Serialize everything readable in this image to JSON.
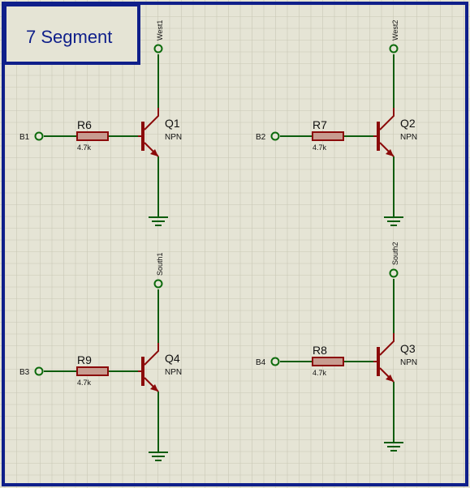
{
  "title": "7 Segment",
  "colors": {
    "background": "#e5e4d5",
    "grid": "#c9c8b6",
    "frame": "#0f1f8a",
    "wire": "#0c5c0c",
    "component": "#8b0a0a",
    "resistor_fill": "#c89c90",
    "terminal": "#0c6a0c",
    "text": "#111111",
    "title_text": "#0f1f8a"
  },
  "terminals": {
    "west1": "West1",
    "west2": "West2",
    "south1": "South1",
    "south2": "South2",
    "b1": "B1",
    "b2": "B2",
    "b3": "B3",
    "b4": "B4"
  },
  "components": {
    "r6": {
      "ref": "R6",
      "value": "4.7k"
    },
    "r7": {
      "ref": "R7",
      "value": "4.7k"
    },
    "r8": {
      "ref": "R8",
      "value": "4.7k"
    },
    "r9": {
      "ref": "R9",
      "value": "4.7k"
    },
    "q1": {
      "ref": "Q1",
      "type": "NPN"
    },
    "q2": {
      "ref": "Q2",
      "type": "NPN"
    },
    "q3": {
      "ref": "Q3",
      "type": "NPN"
    },
    "q4": {
      "ref": "Q4",
      "type": "NPN"
    }
  }
}
